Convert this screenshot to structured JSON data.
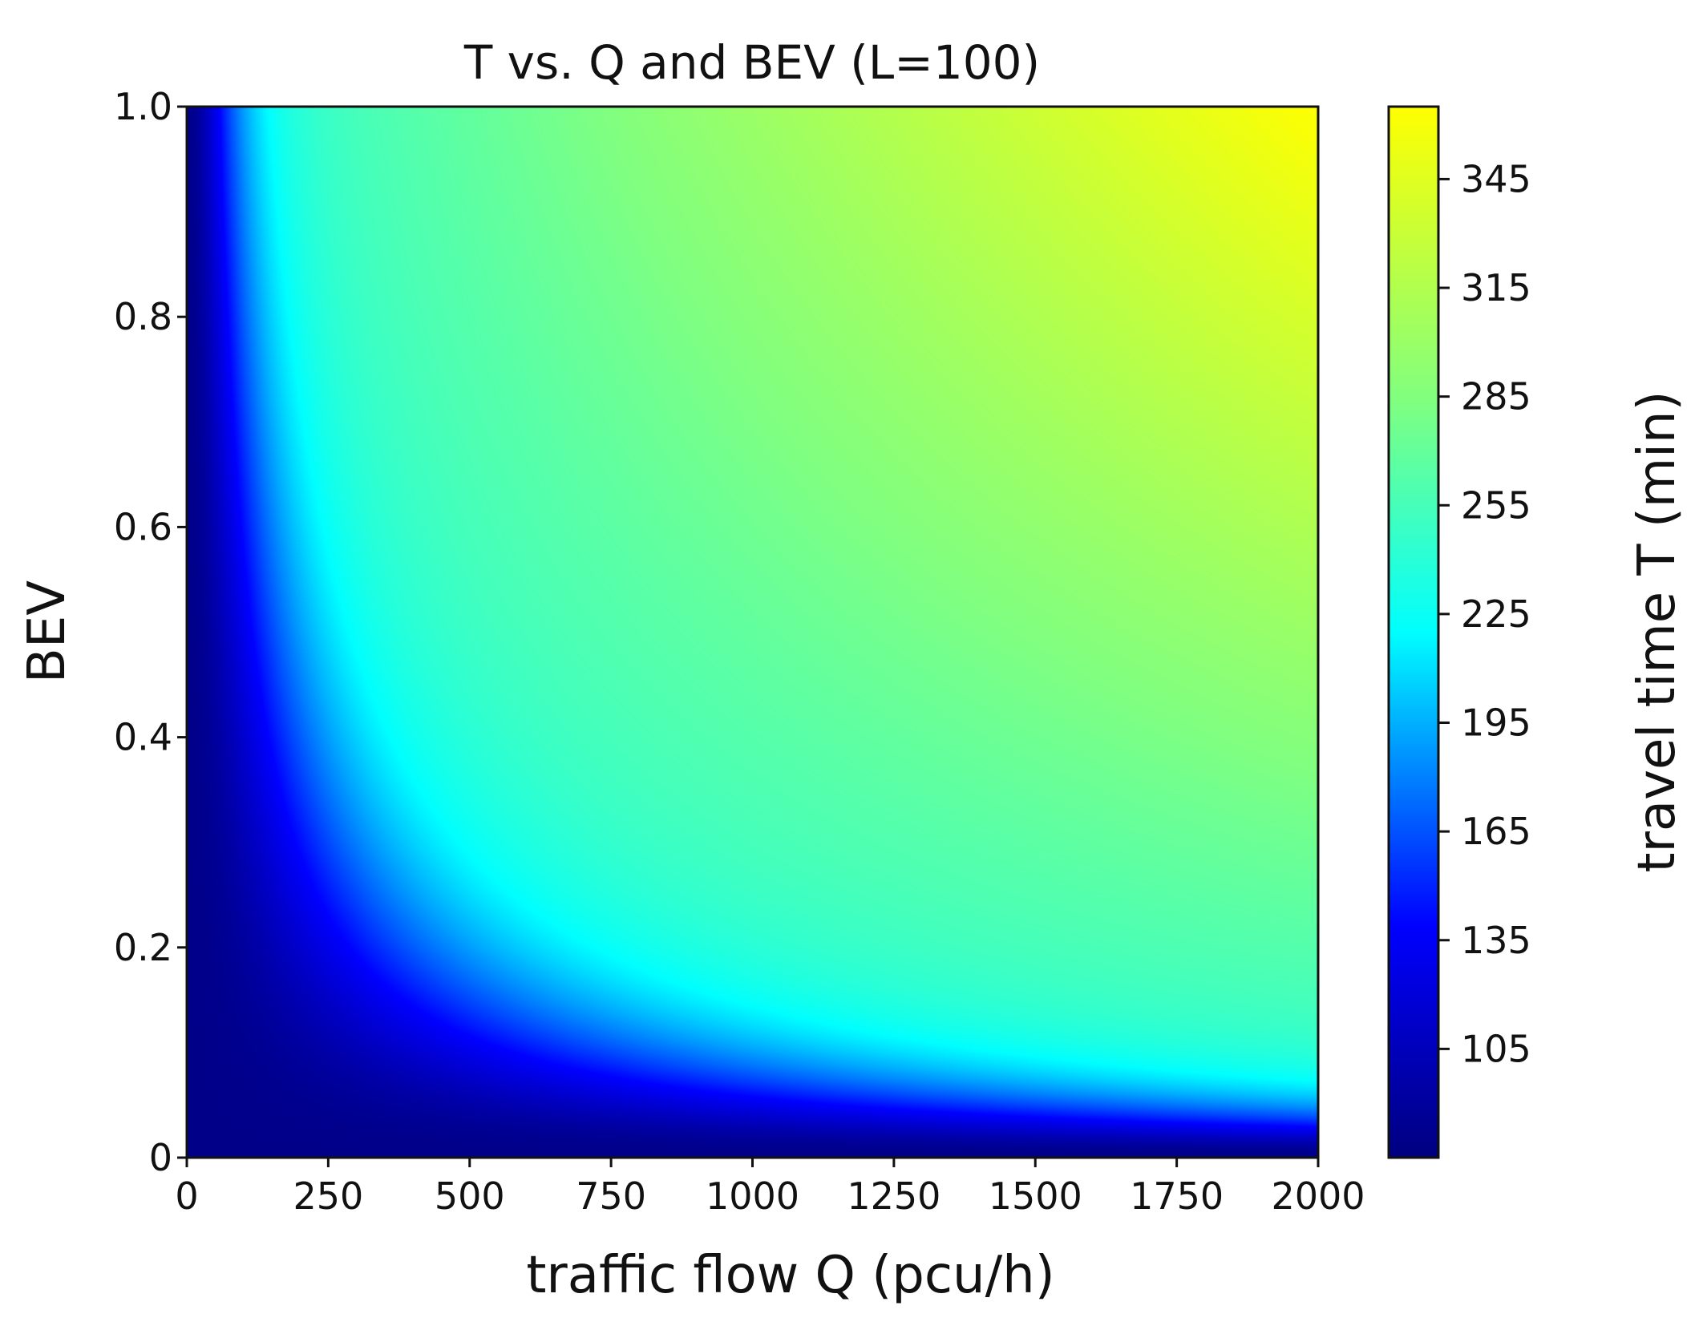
{
  "chart_data": {
    "type": "heatmap",
    "title": "T vs. Q and BEV (L=100)",
    "xlabel": "traffic flow Q (pcu/h)",
    "ylabel": "BEV",
    "colorbar_label": "travel time T  (min)",
    "xlim": [
      0,
      2000
    ],
    "ylim": [
      0,
      1.0
    ],
    "x_ticks": [
      0,
      250,
      500,
      750,
      1000,
      1250,
      1500,
      1750,
      2000
    ],
    "x_tick_labels": [
      "0",
      "250",
      "500",
      "750",
      "1000",
      "1250",
      "1500",
      "1750",
      "2000"
    ],
    "y_ticks": [
      0,
      0.2,
      0.4,
      0.6,
      0.8,
      1.0
    ],
    "y_tick_labels": [
      "0",
      "0.2",
      "0.4",
      "0.6",
      "0.8",
      "1.0"
    ],
    "colorbar_range": [
      75,
      365
    ],
    "colorbar_ticks": [
      105,
      135,
      165,
      195,
      225,
      255,
      285,
      315,
      345
    ],
    "colorbar_tick_labels": [
      "105",
      "135",
      "165",
      "195",
      "225",
      "255",
      "285",
      "315",
      "345"
    ],
    "colormap": "jet-like (dark blue → blue → cyan → green → yellow)",
    "colormap_stops": [
      "#00007f",
      "#0000ff",
      "#00ffff",
      "#80ff80",
      "#ffff00"
    ],
    "grid": false,
    "trend": "T is lowest (~80 min) near Q=0 or BEV=0 and rises toward ~360 min as both Q and BEV increase; iso-contours are hyperbola-like (depend on Q·BEV)."
  }
}
